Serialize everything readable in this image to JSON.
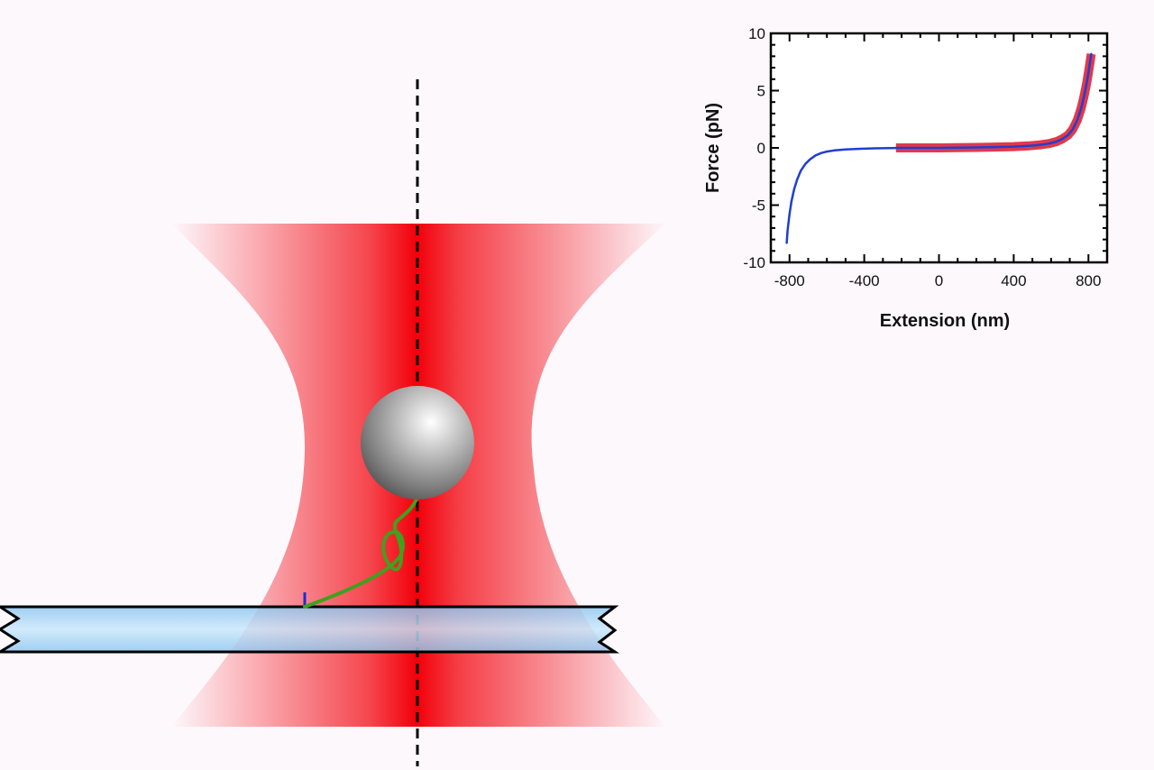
{
  "scene": {
    "laser_color": "#f2000a",
    "bead_color": "#9a9a9a",
    "tether_color": "#3fa11d",
    "coverslip_color": "#9dd3f7",
    "axis_line_color": "#000000"
  },
  "chart_data": {
    "type": "line",
    "xlabel": "Extension (nm)",
    "ylabel": "Force (pN)",
    "xlim": [
      -900,
      900
    ],
    "ylim": [
      -10,
      10
    ],
    "xticks": [
      -800,
      -400,
      0,
      400,
      800
    ],
    "yticks": [
      -10,
      -5,
      0,
      5,
      10
    ],
    "grid": false,
    "series": [
      {
        "color": "#1f3fcf",
        "width": 2.5,
        "x": [
          -815,
          -810,
          -800,
          -790,
          -775,
          -760,
          -740,
          -715,
          -690,
          -660,
          -630,
          -600,
          -560,
          -500,
          -420,
          -340,
          -260,
          -220
        ],
        "y": [
          -8.3,
          -7.2,
          -5.8,
          -4.7,
          -3.6,
          -2.8,
          -2.0,
          -1.4,
          -1.0,
          -0.65,
          -0.45,
          -0.32,
          -0.22,
          -0.14,
          -0.08,
          -0.04,
          -0.02,
          -0.01
        ]
      },
      {
        "color": "#e2384a",
        "width": 10,
        "x": [
          -230,
          -100,
          0,
          100,
          200,
          300,
          400,
          480,
          540,
          590,
          630,
          660,
          690,
          715,
          740,
          760,
          775,
          790,
          800,
          808,
          815
        ],
        "y": [
          0,
          0,
          0,
          0.02,
          0.04,
          0.07,
          0.11,
          0.17,
          0.26,
          0.38,
          0.55,
          0.78,
          1.1,
          1.6,
          2.4,
          3.4,
          4.4,
          5.6,
          6.6,
          7.4,
          8.2
        ]
      },
      {
        "color": "#1f3fcf",
        "width": 2.5,
        "x": [
          -230,
          -100,
          0,
          100,
          200,
          300,
          400,
          480,
          540,
          590,
          630,
          660,
          690,
          715,
          740,
          760,
          775,
          790,
          800,
          808,
          815
        ],
        "y": [
          0,
          0,
          0,
          0.02,
          0.04,
          0.07,
          0.11,
          0.17,
          0.26,
          0.38,
          0.55,
          0.78,
          1.1,
          1.6,
          2.4,
          3.4,
          4.4,
          5.6,
          6.6,
          7.4,
          8.2
        ]
      }
    ]
  }
}
